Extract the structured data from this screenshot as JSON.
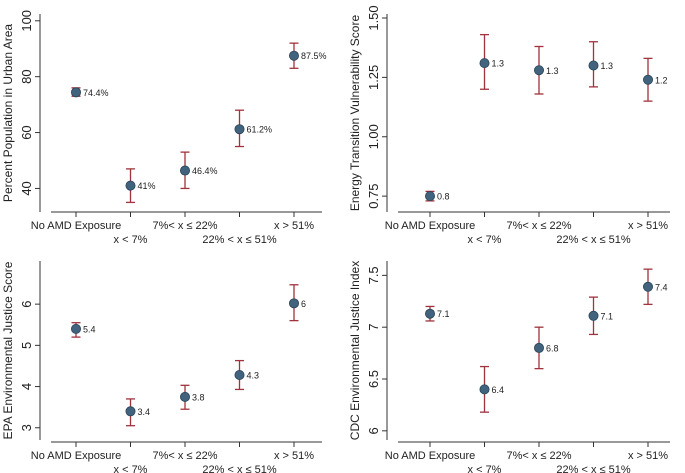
{
  "figure": {
    "title": ""
  },
  "colors": {
    "marker": "#41637e",
    "marker_edge": "#2b4457",
    "errorbar": "#a0333d",
    "axis": "#333333",
    "text": "#222222"
  },
  "chart_data": [
    {
      "type": "scatter",
      "title": "",
      "ylabel": "Percent Population in Urban Area",
      "xlabel": "",
      "categories": [
        "No AMD Exposure",
        "x < 7%",
        "7%< x ≤ 22%",
        "22% < x ≤ 51%",
        "x > 51%"
      ],
      "values": [
        74.4,
        41,
        46.4,
        61.2,
        87.5
      ],
      "ci_low": [
        73,
        35,
        40,
        55,
        83
      ],
      "ci_high": [
        76,
        47,
        53,
        68,
        92
      ],
      "point_labels": [
        "74.4%",
        "41%",
        "46.4%",
        "61.2%",
        "87.5%"
      ],
      "yticks": [
        40,
        60,
        80,
        100
      ],
      "ytick_labels": [
        "40",
        "60",
        "80",
        "100"
      ],
      "ylim": [
        33,
        101
      ],
      "grid": false
    },
    {
      "type": "scatter",
      "title": "",
      "ylabel": "Energy Transition Vulnerability Score",
      "xlabel": "",
      "categories": [
        "No AMD Exposure",
        "x < 7%",
        "7%< x ≤ 22%",
        "22% < x ≤ 51%",
        "x > 51%"
      ],
      "values": [
        0.75,
        1.31,
        1.28,
        1.3,
        1.24
      ],
      "ci_low": [
        0.73,
        1.2,
        1.18,
        1.21,
        1.15
      ],
      "ci_high": [
        0.77,
        1.43,
        1.38,
        1.4,
        1.33
      ],
      "point_labels": [
        "0.8",
        "1.3",
        "1.3",
        "1.3",
        "1.2"
      ],
      "yticks": [
        0.75,
        1.0,
        1.25,
        1.5
      ],
      "ytick_labels": [
        "0.75",
        "1.00",
        "1.25",
        "1.50"
      ],
      "ylim": [
        0.7,
        1.5
      ],
      "grid": false
    },
    {
      "type": "scatter",
      "title": "",
      "ylabel": "EPA Environmental Justice Score",
      "xlabel": "",
      "categories": [
        "No AMD Exposure",
        "x < 7%",
        "7%< x ≤ 22%",
        "22% < x ≤ 51%",
        "x > 51%"
      ],
      "values": [
        5.4,
        3.4,
        3.75,
        4.28,
        6.02
      ],
      "ci_low": [
        5.2,
        3.05,
        3.45,
        3.93,
        5.6
      ],
      "ci_high": [
        5.55,
        3.7,
        4.03,
        4.63,
        6.47
      ],
      "point_labels": [
        "5.4",
        "3.4",
        "3.8",
        "4.3",
        "6"
      ],
      "yticks": [
        3,
        4,
        5,
        6
      ],
      "ytick_labels": [
        "3",
        "4",
        "5",
        "6"
      ],
      "ylim": [
        2.8,
        6.95
      ],
      "grid": false
    },
    {
      "type": "scatter",
      "title": "",
      "ylabel": "CDC Environmental Justice Index",
      "xlabel": "",
      "categories": [
        "No AMD Exposure",
        "x < 7%",
        "7%< x ≤ 22%",
        "22% < x ≤ 51%",
        "x > 51%"
      ],
      "values": [
        7.13,
        6.4,
        6.8,
        7.11,
        7.39
      ],
      "ci_low": [
        7.06,
        6.18,
        6.6,
        6.93,
        7.22
      ],
      "ci_high": [
        7.2,
        6.62,
        7.0,
        7.29,
        7.56
      ],
      "point_labels": [
        "7.1",
        "6.4",
        "6.8",
        "7.1",
        "7.4"
      ],
      "yticks": [
        6,
        6.5,
        7,
        7.5
      ],
      "ytick_labels": [
        "6",
        "6.5",
        "7",
        "7.5"
      ],
      "ylim": [
        5.95,
        7.6
      ],
      "grid": false
    }
  ]
}
